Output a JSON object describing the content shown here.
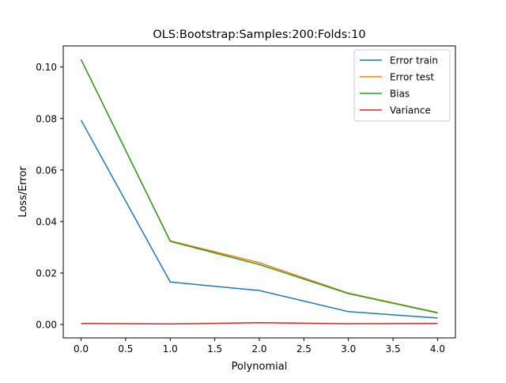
{
  "chart_data": {
    "type": "line",
    "title": "OLS:Bootstrap:Samples:200:Folds:10",
    "xlabel": "Polynomial",
    "ylabel": "Loss/Error",
    "x": [
      0,
      1,
      2,
      3,
      4
    ],
    "xlim": [
      -0.2,
      4.2
    ],
    "ylim": [
      -0.0052,
      0.1082
    ],
    "xticks": [
      0.0,
      0.5,
      1.0,
      1.5,
      2.0,
      2.5,
      3.0,
      3.5,
      4.0
    ],
    "xtick_labels": [
      "0.0",
      "0.5",
      "1.0",
      "1.5",
      "2.0",
      "2.5",
      "3.0",
      "3.5",
      "4.0"
    ],
    "yticks": [
      0.0,
      0.02,
      0.04,
      0.06,
      0.08,
      0.1
    ],
    "ytick_labels": [
      "0.00",
      "0.02",
      "0.04",
      "0.06",
      "0.08",
      "0.10"
    ],
    "grid": false,
    "legend_position": "top-right",
    "series": [
      {
        "name": "Error train",
        "color": "#1f77b4",
        "values": [
          0.0794,
          0.0165,
          0.0132,
          0.005,
          0.0025
        ]
      },
      {
        "name": "Error test",
        "color": "#ff7f0e",
        "values": [
          0.103,
          0.0325,
          0.024,
          0.0122,
          0.0047
        ]
      },
      {
        "name": "Bias",
        "color": "#2ca02c",
        "values": [
          0.1029,
          0.0323,
          0.0233,
          0.012,
          0.0045
        ]
      },
      {
        "name": "Variance",
        "color": "#d62728",
        "values": [
          0.0004,
          0.0002,
          0.0007,
          0.0003,
          0.0004
        ]
      }
    ]
  }
}
